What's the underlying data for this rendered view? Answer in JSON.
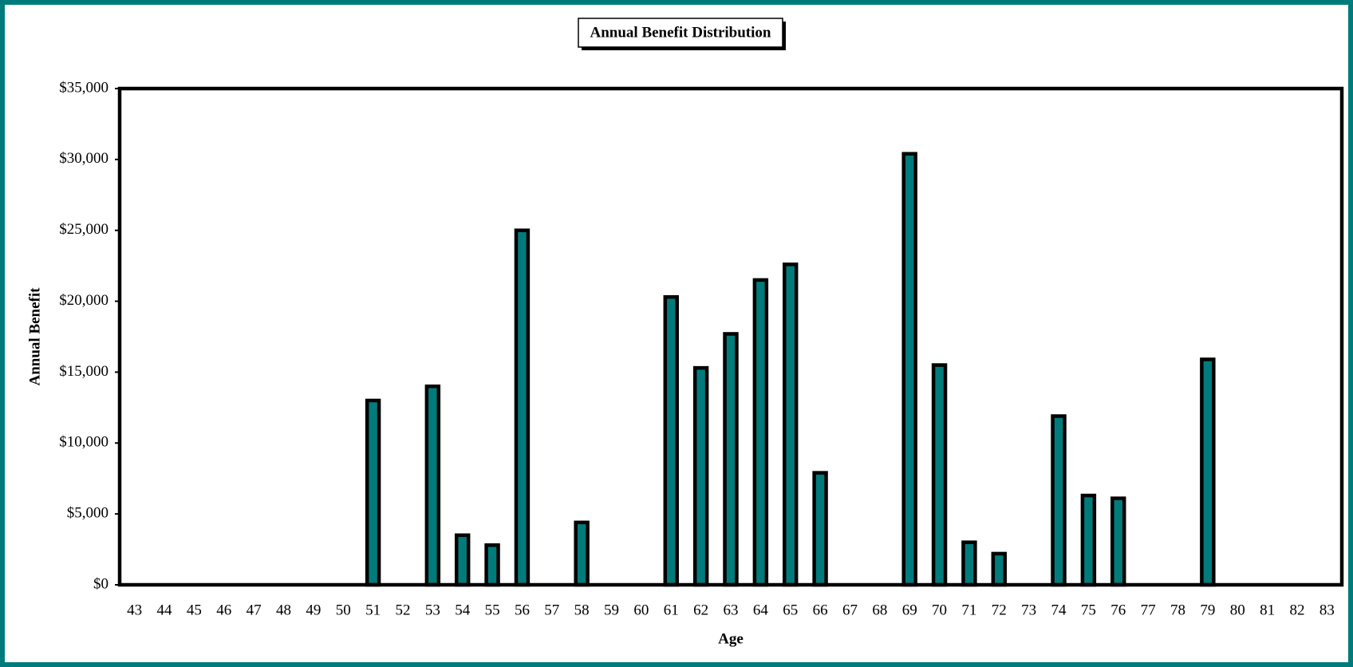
{
  "chart_data": {
    "type": "bar",
    "title": "Annual Benefit Distribution",
    "x_label": "Age",
    "y_label": "Annual Benefit",
    "categories": [
      "43",
      "44",
      "45",
      "46",
      "47",
      "48",
      "49",
      "50",
      "51",
      "52",
      "53",
      "54",
      "55",
      "56",
      "57",
      "58",
      "59",
      "60",
      "61",
      "62",
      "63",
      "64",
      "65",
      "66",
      "67",
      "68",
      "69",
      "70",
      "71",
      "72",
      "73",
      "74",
      "75",
      "76",
      "77",
      "78",
      "79",
      "80",
      "81",
      "82",
      "83"
    ],
    "values": [
      0,
      0,
      0,
      0,
      0,
      0,
      0,
      0,
      13000,
      0,
      14000,
      3500,
      2800,
      25000,
      0,
      4400,
      0,
      0,
      20300,
      15300,
      17700,
      21500,
      22600,
      7900,
      0,
      0,
      30400,
      15500,
      3000,
      2200,
      0,
      11900,
      6300,
      6100,
      0,
      0,
      15900,
      0,
      0,
      0,
      0
    ],
    "color": "#007b7b",
    "ylim": [
      0,
      35000
    ],
    "yticks": [
      {
        "value": 0,
        "label": "$0"
      },
      {
        "value": 5000,
        "label": "$5,000"
      },
      {
        "value": 10000,
        "label": "$10,000"
      },
      {
        "value": 15000,
        "label": "$15,000"
      },
      {
        "value": 20000,
        "label": "$20,000"
      },
      {
        "value": 25000,
        "label": "$25,000"
      },
      {
        "value": 30000,
        "label": "$30,000"
      },
      {
        "value": 35000,
        "label": "$35,000"
      }
    ]
  }
}
